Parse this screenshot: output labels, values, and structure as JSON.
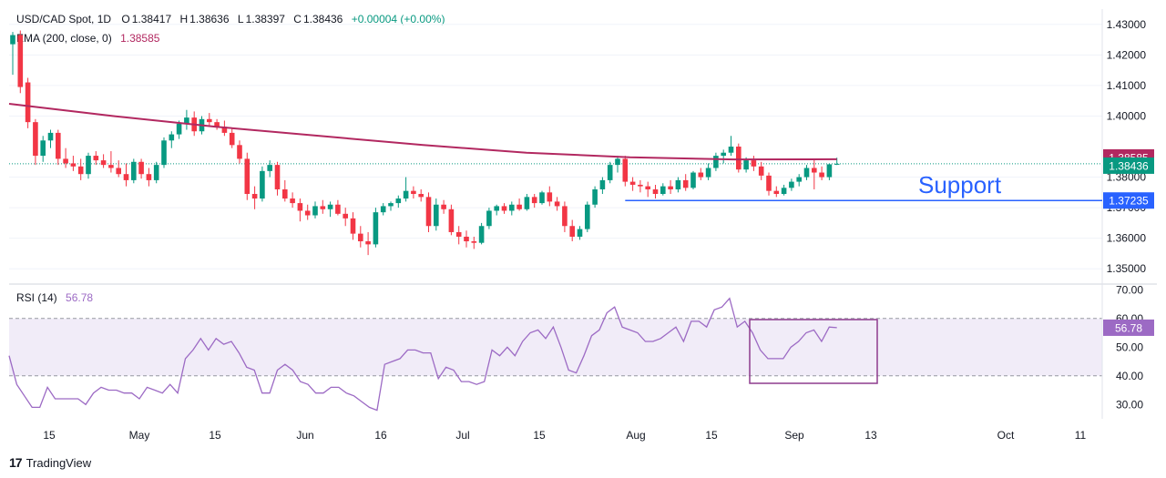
{
  "header": {
    "symbol": "USD/CAD Spot, 1D",
    "open_label": "O",
    "open": "1.38417",
    "high_label": "H",
    "high": "1.38636",
    "low_label": "L",
    "low": "1.38397",
    "close_label": "C",
    "close": "1.38436",
    "change": "+0.00004 (+0.00%)",
    "ema_label": "EMA (200, close, 0)",
    "ema_value": "1.38585"
  },
  "rsi_header": {
    "label": "RSI (14)",
    "value": "56.78"
  },
  "annotation": {
    "support_text": "Support"
  },
  "price_badges": {
    "ema": "1.38585",
    "last": "1.38436",
    "support": "1.37235"
  },
  "rsi_badge": "56.78",
  "brand": {
    "name": "TradingView",
    "mark": "17"
  },
  "colors": {
    "up": "#089981",
    "down": "#f23645",
    "ema": "#b22860",
    "support": "#2962ff",
    "rsi": "#9c6ac4",
    "rsi_band": "#ede7f6"
  },
  "chart_data": [
    {
      "type": "candlestick",
      "title": "USD/CAD Spot, 1D",
      "ylim": [
        1.345,
        1.435
      ],
      "y_ticks": [
        "1.43000",
        "1.42000",
        "1.41000",
        "1.40000",
        "1.38000",
        "1.37000",
        "1.36000",
        "1.35000"
      ],
      "x_tick_labels": [
        "15",
        "May",
        "15",
        "Jun",
        "16",
        "Jul",
        "15",
        "Aug",
        "15",
        "Sep",
        "13",
        "Oct",
        "11"
      ],
      "candles": [
        {
          "o": 1.4235,
          "h": 1.4275,
          "l": 1.4135,
          "c": 1.4265
        },
        {
          "o": 1.4265,
          "h": 1.428,
          "l": 1.4075,
          "c": 1.4095
        },
        {
          "o": 1.411,
          "h": 1.4125,
          "l": 1.396,
          "c": 1.398
        },
        {
          "o": 1.398,
          "h": 1.399,
          "l": 1.384,
          "c": 1.387
        },
        {
          "o": 1.387,
          "h": 1.3935,
          "l": 1.385,
          "c": 1.392
        },
        {
          "o": 1.392,
          "h": 1.3955,
          "l": 1.3895,
          "c": 1.3945
        },
        {
          "o": 1.3945,
          "h": 1.3955,
          "l": 1.384,
          "c": 1.386
        },
        {
          "o": 1.386,
          "h": 1.3895,
          "l": 1.383,
          "c": 1.3845
        },
        {
          "o": 1.3845,
          "h": 1.387,
          "l": 1.382,
          "c": 1.3835
        },
        {
          "o": 1.3835,
          "h": 1.386,
          "l": 1.379,
          "c": 1.381
        },
        {
          "o": 1.381,
          "h": 1.388,
          "l": 1.3795,
          "c": 1.387
        },
        {
          "o": 1.387,
          "h": 1.3885,
          "l": 1.384,
          "c": 1.3855
        },
        {
          "o": 1.3855,
          "h": 1.3875,
          "l": 1.383,
          "c": 1.384
        },
        {
          "o": 1.384,
          "h": 1.3885,
          "l": 1.3815,
          "c": 1.383
        },
        {
          "o": 1.383,
          "h": 1.3855,
          "l": 1.38,
          "c": 1.381
        },
        {
          "o": 1.381,
          "h": 1.3845,
          "l": 1.377,
          "c": 1.379
        },
        {
          "o": 1.379,
          "h": 1.386,
          "l": 1.378,
          "c": 1.385
        },
        {
          "o": 1.385,
          "h": 1.386,
          "l": 1.3795,
          "c": 1.381
        },
        {
          "o": 1.381,
          "h": 1.383,
          "l": 1.377,
          "c": 1.379
        },
        {
          "o": 1.379,
          "h": 1.385,
          "l": 1.378,
          "c": 1.384
        },
        {
          "o": 1.384,
          "h": 1.393,
          "l": 1.383,
          "c": 1.392
        },
        {
          "o": 1.392,
          "h": 1.395,
          "l": 1.3895,
          "c": 1.394
        },
        {
          "o": 1.394,
          "h": 1.3985,
          "l": 1.3925,
          "c": 1.3975
        },
        {
          "o": 1.3975,
          "h": 1.402,
          "l": 1.3955,
          "c": 1.3995
        },
        {
          "o": 1.3995,
          "h": 1.4015,
          "l": 1.3935,
          "c": 1.395
        },
        {
          "o": 1.395,
          "h": 1.4,
          "l": 1.394,
          "c": 1.399
        },
        {
          "o": 1.399,
          "h": 1.401,
          "l": 1.397,
          "c": 1.398
        },
        {
          "o": 1.398,
          "h": 1.399,
          "l": 1.3955,
          "c": 1.3965
        },
        {
          "o": 1.3965,
          "h": 1.3985,
          "l": 1.3935,
          "c": 1.3945
        },
        {
          "o": 1.3945,
          "h": 1.396,
          "l": 1.3895,
          "c": 1.3905
        },
        {
          "o": 1.3905,
          "h": 1.392,
          "l": 1.3845,
          "c": 1.386
        },
        {
          "o": 1.386,
          "h": 1.388,
          "l": 1.3725,
          "c": 1.3745
        },
        {
          "o": 1.3745,
          "h": 1.377,
          "l": 1.3695,
          "c": 1.373
        },
        {
          "o": 1.373,
          "h": 1.3835,
          "l": 1.372,
          "c": 1.382
        },
        {
          "o": 1.382,
          "h": 1.3855,
          "l": 1.38,
          "c": 1.384
        },
        {
          "o": 1.384,
          "h": 1.385,
          "l": 1.374,
          "c": 1.376
        },
        {
          "o": 1.376,
          "h": 1.379,
          "l": 1.372,
          "c": 1.373
        },
        {
          "o": 1.373,
          "h": 1.375,
          "l": 1.37,
          "c": 1.3715
        },
        {
          "o": 1.3715,
          "h": 1.373,
          "l": 1.3655,
          "c": 1.369
        },
        {
          "o": 1.369,
          "h": 1.371,
          "l": 1.366,
          "c": 1.3675
        },
        {
          "o": 1.3675,
          "h": 1.372,
          "l": 1.3665,
          "c": 1.3705
        },
        {
          "o": 1.3705,
          "h": 1.3725,
          "l": 1.368,
          "c": 1.3695
        },
        {
          "o": 1.3695,
          "h": 1.372,
          "l": 1.367,
          "c": 1.371
        },
        {
          "o": 1.371,
          "h": 1.3725,
          "l": 1.3675,
          "c": 1.368
        },
        {
          "o": 1.368,
          "h": 1.37,
          "l": 1.364,
          "c": 1.3665
        },
        {
          "o": 1.3665,
          "h": 1.3685,
          "l": 1.3595,
          "c": 1.3615
        },
        {
          "o": 1.3615,
          "h": 1.364,
          "l": 1.357,
          "c": 1.359
        },
        {
          "o": 1.359,
          "h": 1.362,
          "l": 1.3545,
          "c": 1.358
        },
        {
          "o": 1.358,
          "h": 1.37,
          "l": 1.357,
          "c": 1.3685
        },
        {
          "o": 1.3685,
          "h": 1.3715,
          "l": 1.3675,
          "c": 1.3705
        },
        {
          "o": 1.3705,
          "h": 1.372,
          "l": 1.369,
          "c": 1.3715
        },
        {
          "o": 1.3715,
          "h": 1.374,
          "l": 1.37,
          "c": 1.373
        },
        {
          "o": 1.373,
          "h": 1.38,
          "l": 1.372,
          "c": 1.3755
        },
        {
          "o": 1.3755,
          "h": 1.377,
          "l": 1.373,
          "c": 1.3745
        },
        {
          "o": 1.3745,
          "h": 1.376,
          "l": 1.372,
          "c": 1.3735
        },
        {
          "o": 1.3735,
          "h": 1.375,
          "l": 1.362,
          "c": 1.364
        },
        {
          "o": 1.364,
          "h": 1.373,
          "l": 1.3625,
          "c": 1.371
        },
        {
          "o": 1.371,
          "h": 1.3725,
          "l": 1.368,
          "c": 1.3695
        },
        {
          "o": 1.3695,
          "h": 1.371,
          "l": 1.361,
          "c": 1.362
        },
        {
          "o": 1.362,
          "h": 1.364,
          "l": 1.358,
          "c": 1.3605
        },
        {
          "o": 1.3605,
          "h": 1.3625,
          "l": 1.357,
          "c": 1.359
        },
        {
          "o": 1.359,
          "h": 1.3605,
          "l": 1.3565,
          "c": 1.3585
        },
        {
          "o": 1.3585,
          "h": 1.365,
          "l": 1.358,
          "c": 1.364
        },
        {
          "o": 1.364,
          "h": 1.37,
          "l": 1.363,
          "c": 1.369
        },
        {
          "o": 1.369,
          "h": 1.371,
          "l": 1.3675,
          "c": 1.3705
        },
        {
          "o": 1.3705,
          "h": 1.3715,
          "l": 1.368,
          "c": 1.369
        },
        {
          "o": 1.369,
          "h": 1.372,
          "l": 1.3675,
          "c": 1.371
        },
        {
          "o": 1.371,
          "h": 1.373,
          "l": 1.369,
          "c": 1.3695
        },
        {
          "o": 1.3695,
          "h": 1.3745,
          "l": 1.369,
          "c": 1.3735
        },
        {
          "o": 1.3735,
          "h": 1.3745,
          "l": 1.37,
          "c": 1.3715
        },
        {
          "o": 1.3715,
          "h": 1.3755,
          "l": 1.371,
          "c": 1.375
        },
        {
          "o": 1.375,
          "h": 1.377,
          "l": 1.3705,
          "c": 1.372
        },
        {
          "o": 1.372,
          "h": 1.3735,
          "l": 1.369,
          "c": 1.3705
        },
        {
          "o": 1.3705,
          "h": 1.372,
          "l": 1.362,
          "c": 1.364
        },
        {
          "o": 1.364,
          "h": 1.366,
          "l": 1.359,
          "c": 1.3605
        },
        {
          "o": 1.3605,
          "h": 1.364,
          "l": 1.3595,
          "c": 1.363
        },
        {
          "o": 1.363,
          "h": 1.372,
          "l": 1.362,
          "c": 1.371
        },
        {
          "o": 1.371,
          "h": 1.377,
          "l": 1.37,
          "c": 1.376
        },
        {
          "o": 1.376,
          "h": 1.38,
          "l": 1.3745,
          "c": 1.379
        },
        {
          "o": 1.379,
          "h": 1.385,
          "l": 1.378,
          "c": 1.384
        },
        {
          "o": 1.384,
          "h": 1.387,
          "l": 1.3815,
          "c": 1.386
        },
        {
          "o": 1.386,
          "h": 1.387,
          "l": 1.377,
          "c": 1.3785
        },
        {
          "o": 1.3785,
          "h": 1.38,
          "l": 1.3755,
          "c": 1.3775
        },
        {
          "o": 1.3775,
          "h": 1.379,
          "l": 1.375,
          "c": 1.377
        },
        {
          "o": 1.377,
          "h": 1.3785,
          "l": 1.3735,
          "c": 1.376
        },
        {
          "o": 1.376,
          "h": 1.3775,
          "l": 1.373,
          "c": 1.3745
        },
        {
          "o": 1.3745,
          "h": 1.378,
          "l": 1.374,
          "c": 1.377
        },
        {
          "o": 1.377,
          "h": 1.379,
          "l": 1.3745,
          "c": 1.376
        },
        {
          "o": 1.376,
          "h": 1.38,
          "l": 1.375,
          "c": 1.379
        },
        {
          "o": 1.379,
          "h": 1.381,
          "l": 1.3755,
          "c": 1.3765
        },
        {
          "o": 1.3765,
          "h": 1.382,
          "l": 1.376,
          "c": 1.3815
        },
        {
          "o": 1.3815,
          "h": 1.383,
          "l": 1.379,
          "c": 1.38
        },
        {
          "o": 1.38,
          "h": 1.3845,
          "l": 1.379,
          "c": 1.383
        },
        {
          "o": 1.383,
          "h": 1.388,
          "l": 1.382,
          "c": 1.387
        },
        {
          "o": 1.387,
          "h": 1.389,
          "l": 1.3845,
          "c": 1.388
        },
        {
          "o": 1.388,
          "h": 1.3935,
          "l": 1.387,
          "c": 1.39
        },
        {
          "o": 1.39,
          "h": 1.391,
          "l": 1.3815,
          "c": 1.3825
        },
        {
          "o": 1.3825,
          "h": 1.3865,
          "l": 1.3815,
          "c": 1.3855
        },
        {
          "o": 1.3855,
          "h": 1.387,
          "l": 1.382,
          "c": 1.3835
        },
        {
          "o": 1.3835,
          "h": 1.385,
          "l": 1.379,
          "c": 1.3805
        },
        {
          "o": 1.3805,
          "h": 1.3815,
          "l": 1.374,
          "c": 1.3755
        },
        {
          "o": 1.3755,
          "h": 1.377,
          "l": 1.3735,
          "c": 1.3745
        },
        {
          "o": 1.3745,
          "h": 1.3775,
          "l": 1.374,
          "c": 1.3765
        },
        {
          "o": 1.3765,
          "h": 1.3795,
          "l": 1.3755,
          "c": 1.3785
        },
        {
          "o": 1.3785,
          "h": 1.381,
          "l": 1.377,
          "c": 1.38
        },
        {
          "o": 1.38,
          "h": 1.384,
          "l": 1.379,
          "c": 1.383
        },
        {
          "o": 1.383,
          "h": 1.386,
          "l": 1.376,
          "c": 1.3815
        },
        {
          "o": 1.3815,
          "h": 1.3835,
          "l": 1.379,
          "c": 1.38
        },
        {
          "o": 1.38,
          "h": 1.3845,
          "l": 1.379,
          "c": 1.3842
        },
        {
          "o": 1.38417,
          "h": 1.38636,
          "l": 1.38397,
          "c": 1.38436
        }
      ],
      "ema200": [
        1.404,
        1.4,
        1.3965,
        1.3935,
        1.3905,
        1.388,
        1.3865,
        1.3858,
        1.38585
      ],
      "support_level": 1.37235
    },
    {
      "type": "line",
      "title": "RSI (14)",
      "ylim": [
        25,
        72
      ],
      "y_ticks": [
        "70.00",
        "60.00",
        "50.00",
        "40.00",
        "30.00"
      ],
      "band": [
        40,
        60
      ],
      "values": [
        47,
        37,
        33,
        29,
        29,
        36,
        32,
        32,
        32,
        32,
        30,
        34,
        36,
        35,
        35,
        34,
        34,
        32,
        36,
        35,
        34,
        37,
        34,
        46,
        49,
        53,
        49,
        53,
        51,
        52,
        48,
        43,
        42,
        34,
        34,
        42,
        44,
        42,
        38,
        37,
        34,
        34,
        36,
        36,
        34,
        33,
        31,
        29,
        28,
        44,
        45,
        46,
        49,
        49,
        48,
        48,
        39,
        43,
        42,
        38,
        38,
        37,
        38,
        49,
        47,
        50,
        47,
        52,
        55,
        56,
        53,
        57,
        50,
        42,
        41,
        47,
        54,
        56,
        62,
        64,
        57,
        56,
        55,
        52,
        52,
        53,
        55,
        57,
        52,
        59,
        59,
        57,
        63,
        64,
        67,
        57,
        59,
        55,
        49,
        46,
        46,
        46,
        50,
        52,
        55,
        56,
        52,
        57,
        56.78
      ]
    }
  ]
}
